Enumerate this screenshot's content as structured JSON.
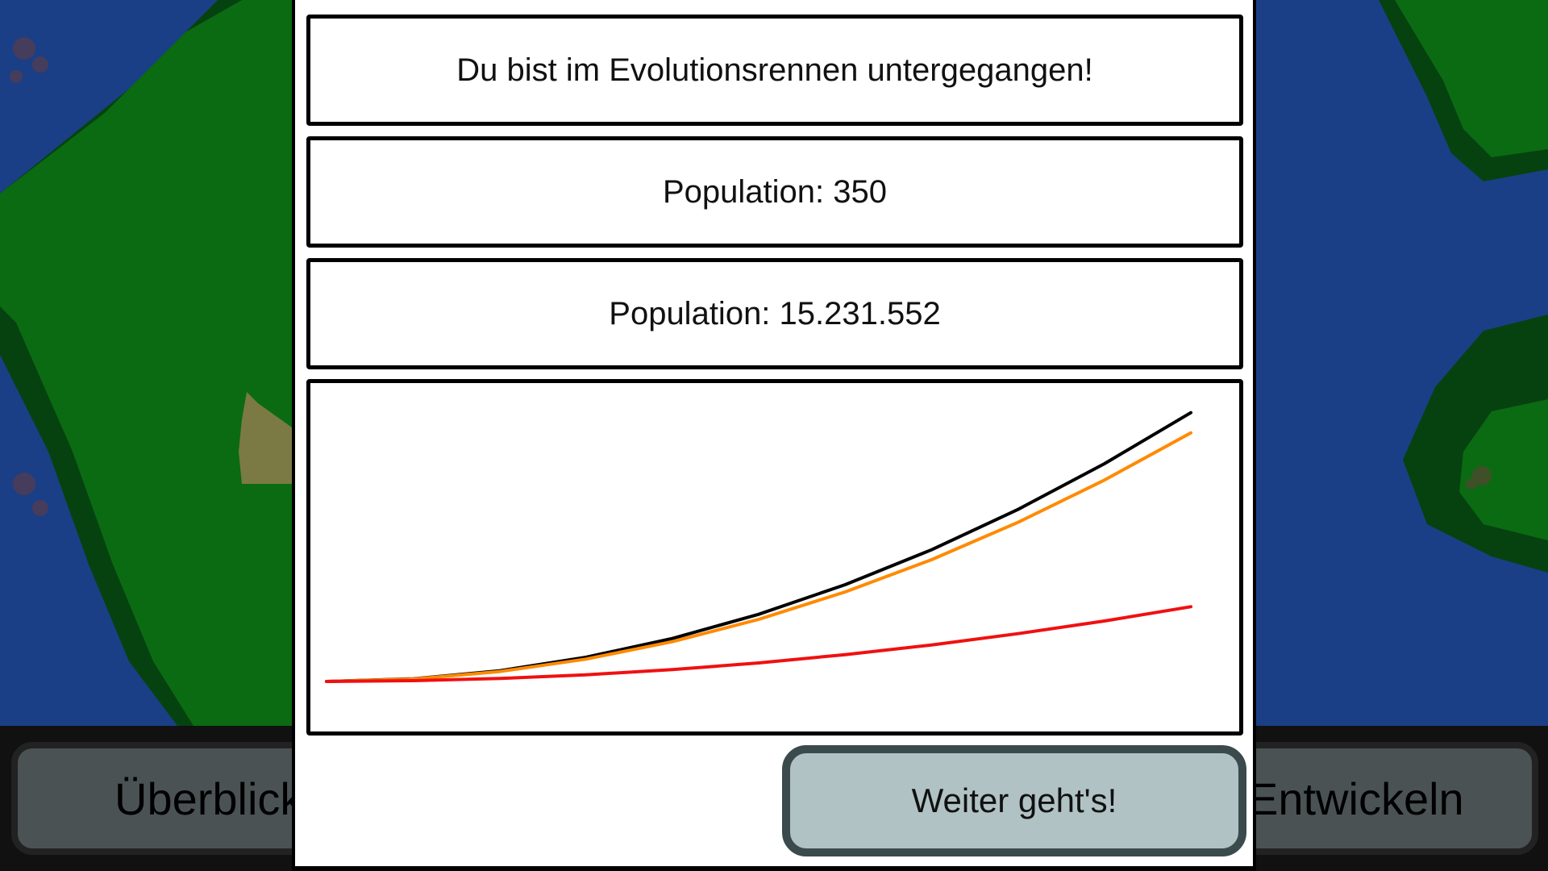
{
  "dialog": {
    "message": "Du bist im Evolutionsrennen untergegangen!",
    "population_own": "Population: 350",
    "population_total": "Population: 15.231.552",
    "continue_label": "Weiter geht's!"
  },
  "bottom_bar": {
    "overview_label": "Überblick",
    "develop_label": "Entwickeln"
  },
  "colors": {
    "ocean": "#1a3f86",
    "land": "#0b6b12",
    "land_dark": "#064210",
    "sand": "#7b7a44",
    "button_gray": "#4a5254",
    "continue_button": "#b1c2c4",
    "line_black": "#000000",
    "line_orange": "#ff8a00",
    "line_red": "#f01010"
  },
  "chart_data": {
    "type": "line",
    "title": "",
    "xlabel": "",
    "ylabel": "",
    "x": [
      0,
      1,
      2,
      3,
      4,
      5,
      6,
      7,
      8,
      9,
      10
    ],
    "xlim": [
      0,
      10
    ],
    "ylim": [
      0,
      1.05
    ],
    "grid": false,
    "legend": "none",
    "series": [
      {
        "color": "#000000",
        "values": [
          0.0,
          0.01,
          0.04,
          0.09,
          0.16,
          0.25,
          0.36,
          0.49,
          0.64,
          0.81,
          1.0
        ]
      },
      {
        "color": "#ff8a00",
        "values": [
          0.0,
          0.009,
          0.037,
          0.083,
          0.148,
          0.231,
          0.333,
          0.453,
          0.592,
          0.749,
          0.925
        ]
      },
      {
        "color": "#f01010",
        "values": [
          0.0,
          0.003,
          0.011,
          0.025,
          0.044,
          0.069,
          0.1,
          0.136,
          0.178,
          0.225,
          0.278
        ]
      }
    ]
  }
}
